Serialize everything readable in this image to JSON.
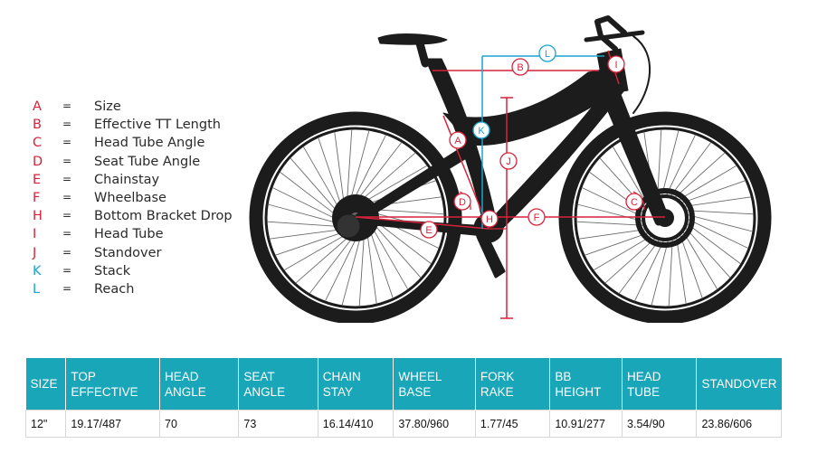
{
  "legend": [
    {
      "letter": "A",
      "name": "Size",
      "color": "#d6233a"
    },
    {
      "letter": "B",
      "name": "Effective TT Length",
      "color": "#d6233a"
    },
    {
      "letter": "C",
      "name": "Head Tube Angle",
      "color": "#d6233a"
    },
    {
      "letter": "D",
      "name": "Seat Tube Angle",
      "color": "#d6233a"
    },
    {
      "letter": "E",
      "name": "Chainstay",
      "color": "#d6233a"
    },
    {
      "letter": "F",
      "name": "Wheelbase",
      "color": "#d6233a"
    },
    {
      "letter": "H",
      "name": "Bottom Bracket Drop",
      "color": "#d6233a"
    },
    {
      "letter": "I",
      "name": "Head Tube",
      "color": "#d6233a"
    },
    {
      "letter": "J",
      "name": "Standover",
      "color": "#d6233a"
    },
    {
      "letter": "K",
      "name": "Stack",
      "color": "#1aa3cf"
    },
    {
      "letter": "L",
      "name": "Reach",
      "color": "#1aa3cf"
    }
  ],
  "legend_separator": "=",
  "diagram_labels": {
    "A": "A",
    "B": "B",
    "C": "C",
    "D": "D",
    "E": "E",
    "F": "F",
    "H": "H",
    "I": "I",
    "J": "J",
    "K": "K",
    "L": "L"
  },
  "colors": {
    "accent_red": "#d6233a",
    "accent_blue": "#1aa3cf",
    "table_header": "#18a6b8",
    "frame": "#1c1c1c"
  },
  "table": {
    "headers": [
      [
        "SIZE"
      ],
      [
        "TOP",
        "EFFECTIVE"
      ],
      [
        "HEAD",
        "ANGLE"
      ],
      [
        "SEAT",
        "ANGLE"
      ],
      [
        "CHAIN",
        "STAY"
      ],
      [
        "WHEEL",
        "BASE"
      ],
      [
        "FORK",
        "RAKE"
      ],
      [
        "BB",
        "HEIGHT"
      ],
      [
        "HEAD",
        "TUBE"
      ],
      [
        "STANDOVER"
      ]
    ],
    "rows": [
      [
        "12\"",
        "19.17/487",
        "70",
        "73",
        "16.14/410",
        "37.80/960",
        "1.77/45",
        "10.91/277",
        "3.54/90",
        "23.86/606"
      ]
    ]
  }
}
